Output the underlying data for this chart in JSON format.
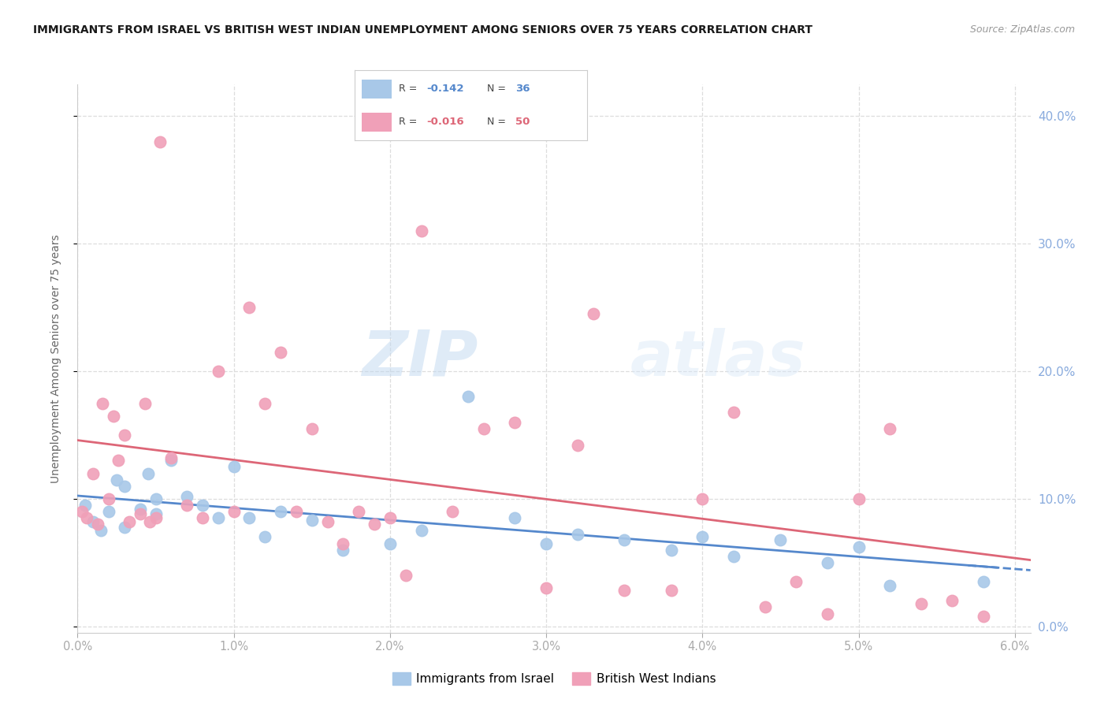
{
  "title": "IMMIGRANTS FROM ISRAEL VS BRITISH WEST INDIAN UNEMPLOYMENT AMONG SENIORS OVER 75 YEARS CORRELATION CHART",
  "source": "Source: ZipAtlas.com",
  "ylabel": "Unemployment Among Seniors over 75 years",
  "r_israel": -0.142,
  "n_israel": 36,
  "r_bwi": -0.016,
  "n_bwi": 50,
  "xlim": [
    0.0,
    0.061
  ],
  "ylim": [
    -0.005,
    0.425
  ],
  "xticks": [
    0.0,
    0.01,
    0.02,
    0.03,
    0.04,
    0.05,
    0.06
  ],
  "yticks": [
    0.0,
    0.1,
    0.2,
    0.3,
    0.4
  ],
  "color_israel": "#a8c8e8",
  "color_bwi": "#f0a0b8",
  "trendline_israel": "#5588cc",
  "trendline_bwi": "#dd6677",
  "legend_label_israel": "Immigrants from Israel",
  "legend_label_bwi": "British West Indians",
  "watermark_zip": "ZIP",
  "watermark_atlas": "atlas",
  "israel_x": [
    0.0005,
    0.001,
    0.0015,
    0.002,
    0.0025,
    0.003,
    0.003,
    0.004,
    0.0045,
    0.005,
    0.005,
    0.006,
    0.007,
    0.008,
    0.009,
    0.01,
    0.011,
    0.012,
    0.013,
    0.015,
    0.017,
    0.02,
    0.022,
    0.025,
    0.028,
    0.03,
    0.032,
    0.035,
    0.038,
    0.04,
    0.042,
    0.045,
    0.048,
    0.05,
    0.052,
    0.058
  ],
  "israel_y": [
    0.095,
    0.082,
    0.075,
    0.09,
    0.115,
    0.078,
    0.11,
    0.092,
    0.12,
    0.088,
    0.1,
    0.13,
    0.102,
    0.095,
    0.085,
    0.125,
    0.085,
    0.07,
    0.09,
    0.083,
    0.06,
    0.065,
    0.075,
    0.18,
    0.085,
    0.065,
    0.072,
    0.068,
    0.06,
    0.07,
    0.055,
    0.068,
    0.05,
    0.062,
    0.032,
    0.035
  ],
  "bwi_x": [
    0.0003,
    0.0006,
    0.001,
    0.0013,
    0.0016,
    0.002,
    0.0023,
    0.0026,
    0.003,
    0.0033,
    0.004,
    0.0043,
    0.0046,
    0.005,
    0.0053,
    0.006,
    0.007,
    0.008,
    0.009,
    0.01,
    0.011,
    0.012,
    0.013,
    0.014,
    0.015,
    0.016,
    0.017,
    0.018,
    0.019,
    0.02,
    0.021,
    0.022,
    0.024,
    0.026,
    0.028,
    0.03,
    0.032,
    0.033,
    0.035,
    0.038,
    0.04,
    0.042,
    0.044,
    0.046,
    0.048,
    0.05,
    0.052,
    0.054,
    0.056,
    0.058
  ],
  "bwi_y": [
    0.09,
    0.085,
    0.12,
    0.08,
    0.175,
    0.1,
    0.165,
    0.13,
    0.15,
    0.082,
    0.088,
    0.175,
    0.082,
    0.085,
    0.38,
    0.132,
    0.095,
    0.085,
    0.2,
    0.09,
    0.25,
    0.175,
    0.215,
    0.09,
    0.155,
    0.082,
    0.065,
    0.09,
    0.08,
    0.085,
    0.04,
    0.31,
    0.09,
    0.155,
    0.16,
    0.03,
    0.142,
    0.245,
    0.028,
    0.028,
    0.1,
    0.168,
    0.015,
    0.035,
    0.01,
    0.1,
    0.155,
    0.018,
    0.02,
    0.008
  ]
}
